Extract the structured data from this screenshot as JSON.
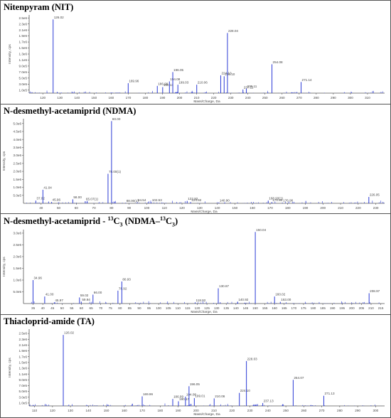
{
  "chart_data": [
    {
      "type": "bar",
      "title": "Nitenpyram (NIT)",
      "xlabel": "Mass/Charge, Da",
      "ylabel": "Intensity, cps",
      "xlim": [
        112,
        320
      ],
      "ylim": [
        0,
        2600000
      ],
      "xticks": [
        120,
        130,
        140,
        150,
        160,
        170,
        180,
        190,
        200,
        210,
        220,
        230,
        240,
        250,
        260,
        270,
        280,
        290,
        300,
        310
      ],
      "yticks": [
        {
          "v": 100000,
          "label": "1.0e5"
        },
        {
          "v": 300000,
          "label": "3.0e5"
        },
        {
          "v": 500000,
          "label": "5.0e5"
        },
        {
          "v": 700000,
          "label": "7.0e5"
        },
        {
          "v": 900000,
          "label": "9.0e5"
        },
        {
          "v": 1100000,
          "label": "1.1e6"
        },
        {
          "v": 1300000,
          "label": "1.3e6"
        },
        {
          "v": 1500000,
          "label": "1.5e6"
        },
        {
          "v": 1700000,
          "label": "1.7e6"
        },
        {
          "v": 1900000,
          "label": "1.9e6"
        },
        {
          "v": 2100000,
          "label": "2.1e6"
        },
        {
          "v": 2300000,
          "label": "2.3e6"
        },
        {
          "v": 2500000,
          "label": "2.5e6"
        }
      ],
      "peaks": [
        {
          "x": 126.02,
          "y": 2450000,
          "label": "126.02"
        },
        {
          "x": 169.96,
          "y": 330000,
          "label": "169.96"
        },
        {
          "x": 186.99,
          "y": 240000,
          "label": "186.99"
        },
        {
          "x": 190.13,
          "y": 200000,
          "label": "190.13"
        },
        {
          "x": 194.08,
          "y": 390000,
          "label": "194.08"
        },
        {
          "x": 196.05,
          "y": 700000,
          "label": "196.05"
        },
        {
          "x": 199.03,
          "y": 280000,
          "label": "199.03"
        },
        {
          "x": 210.06,
          "y": 280000,
          "label": "210.06"
        },
        {
          "x": 224.1,
          "y": 590000,
          "label": "224.10"
        },
        {
          "x": 226.1,
          "y": 560000,
          "label": "226.10"
        },
        {
          "x": 228.04,
          "y": 2000000,
          "label": "228.04"
        },
        {
          "x": 237.11,
          "y": 120000,
          "label": "237.11"
        },
        {
          "x": 239.11,
          "y": 150000,
          "label": "239.11"
        },
        {
          "x": 254.08,
          "y": 960000,
          "label": "254.08"
        },
        {
          "x": 271.14,
          "y": 370000,
          "label": "271.14"
        }
      ]
    },
    {
      "type": "bar",
      "title": "N-desmethyl-acetamiprid (NDMA)",
      "xlabel": "Mass/Charge, Da",
      "ylabel": "Intensity, cps",
      "xlim": [
        30,
        235
      ],
      "ylim": [
        0,
        5300000
      ],
      "xticks": [
        40,
        50,
        60,
        70,
        80,
        90,
        100,
        110,
        120,
        130,
        140,
        150,
        160,
        170,
        180,
        190,
        200,
        210,
        220,
        230
      ],
      "yticks": [
        {
          "v": 500000,
          "label": "5.0e5"
        },
        {
          "v": 1000000,
          "label": "1.0e6"
        },
        {
          "v": 1500000,
          "label": "1.5e6"
        },
        {
          "v": 2000000,
          "label": "2.0e6"
        },
        {
          "v": 2500000,
          "label": "2.5e6"
        },
        {
          "v": 3000000,
          "label": "3.0e6"
        },
        {
          "v": 3500000,
          "label": "3.5e6"
        },
        {
          "v": 4000000,
          "label": "4.0e6"
        },
        {
          "v": 4500000,
          "label": "4.5e6"
        },
        {
          "v": 5000000,
          "label": "5.0e6"
        }
      ],
      "peaks": [
        {
          "x": 37.02,
          "y": 170000,
          "label": "37.02"
        },
        {
          "x": 41.04,
          "y": 850000,
          "label": "41.04"
        },
        {
          "x": 45.96,
          "y": 80000,
          "label": "45.96"
        },
        {
          "x": 58.0,
          "y": 250000,
          "label": "58.00"
        },
        {
          "x": 65.07,
          "y": 130000,
          "label": "65.07(1)"
        },
        {
          "x": 78.0,
          "y": 1850000,
          "label": "78.00(1)"
        },
        {
          "x": 80.0,
          "y": 5150000,
          "label": "80.00"
        },
        {
          "x": 88.0,
          "y": 30000,
          "label": "88.00(1)"
        },
        {
          "x": 94.54,
          "y": 60000,
          "label": "94.54"
        },
        {
          "x": 102.53,
          "y": 60000,
          "label": "102.53"
        },
        {
          "x": 122.92,
          "y": 150000,
          "label": "122.92"
        },
        {
          "x": 124.92,
          "y": 70000,
          "label": "124.92"
        },
        {
          "x": 140.9,
          "y": 50000,
          "label": "140.90"
        },
        {
          "x": 168.93,
          "y": 170000,
          "label": "168.93(1)"
        },
        {
          "x": 170.94,
          "y": 70000,
          "label": "170.94"
        },
        {
          "x": 176.96,
          "y": 40000,
          "label": "176.96"
        },
        {
          "x": 226.05,
          "y": 400000,
          "label": "226.05"
        }
      ]
    },
    {
      "type": "bar",
      "title": "N-desmethyl-acetamiprid - 13C3 (NDMA-13C3)",
      "xlabel": "Mass/Charge, Da",
      "ylabel": "Intensity, cps",
      "xlim": [
        30,
        217
      ],
      "ylim": [
        0,
        3150000
      ],
      "xticks": [
        35,
        40,
        45,
        50,
        55,
        60,
        65,
        70,
        75,
        80,
        85,
        90,
        95,
        100,
        105,
        110,
        115,
        120,
        125,
        130,
        135,
        140,
        145,
        150,
        155,
        160,
        165,
        170,
        175,
        180,
        185,
        190,
        195,
        200,
        205,
        210,
        215
      ],
      "yticks": [
        {
          "v": 500000,
          "label": "5.0e5"
        },
        {
          "v": 1000000,
          "label": "1.0e6"
        },
        {
          "v": 1500000,
          "label": "1.5e6"
        },
        {
          "v": 2000000,
          "label": "2.0e6"
        },
        {
          "v": 2500000,
          "label": "2.5e6"
        },
        {
          "v": 3000000,
          "label": "3.0e6"
        }
      ],
      "peaks": [
        {
          "x": 34.96,
          "y": 1000000,
          "label": "34.96"
        },
        {
          "x": 41.0,
          "y": 300000,
          "label": "41.00"
        },
        {
          "x": 45.97,
          "y": 50000,
          "label": "45.97"
        },
        {
          "x": 59.02,
          "y": 260000,
          "label": "59.02"
        },
        {
          "x": 59.94,
          "y": 80000,
          "label": "59.94"
        },
        {
          "x": 66.0,
          "y": 380000,
          "label": "66.00"
        },
        {
          "x": 78.92,
          "y": 550000,
          "label": "78.92"
        },
        {
          "x": 80.93,
          "y": 940000,
          "label": "80.93"
        },
        {
          "x": 118.92,
          "y": 50000,
          "label": "118.92"
        },
        {
          "x": 130.87,
          "y": 650000,
          "label": "130.87"
        },
        {
          "x": 140.92,
          "y": 80000,
          "label": "140.92"
        },
        {
          "x": 150.04,
          "y": 3050000,
          "label": "150.04"
        },
        {
          "x": 160.02,
          "y": 300000,
          "label": "160.02"
        },
        {
          "x": 163.0,
          "y": 70000,
          "label": "163.00"
        },
        {
          "x": 208.97,
          "y": 440000,
          "label": "208.97"
        }
      ]
    },
    {
      "type": "bar",
      "title": "Thiacloprid-amide (TA)",
      "xlabel": "Mass/Charge, Da",
      "ylabel": "Intensity, cps",
      "xlim": [
        107,
        305
      ],
      "ylim": [
        0,
        2650000
      ],
      "xticks": [
        110,
        120,
        130,
        140,
        150,
        160,
        170,
        180,
        190,
        200,
        210,
        220,
        230,
        240,
        250,
        260,
        270,
        280,
        290,
        300
      ],
      "yticks": [
        {
          "v": 100000,
          "label": "1.0e5"
        },
        {
          "v": 300000,
          "label": "3.0e5"
        },
        {
          "v": 500000,
          "label": "5.0e5"
        },
        {
          "v": 700000,
          "label": "7.0e5"
        },
        {
          "v": 900000,
          "label": "9.0e5"
        },
        {
          "v": 1100000,
          "label": "1.1e6"
        },
        {
          "v": 1300000,
          "label": "1.3e6"
        },
        {
          "v": 1500000,
          "label": "1.5e6"
        },
        {
          "v": 1700000,
          "label": "1.7e6"
        },
        {
          "v": 1900000,
          "label": "1.9e6"
        },
        {
          "v": 2100000,
          "label": "2.1e6"
        },
        {
          "v": 2300000,
          "label": "2.3e6"
        },
        {
          "v": 2500000,
          "label": "2.5e6"
        }
      ],
      "peaks": [
        {
          "x": 126.02,
          "y": 2450000,
          "label": "126.02"
        },
        {
          "x": 169.96,
          "y": 330000,
          "label": "169.96"
        },
        {
          "x": 186.99,
          "y": 240000,
          "label": "186.99"
        },
        {
          "x": 190.17,
          "y": 160000,
          "label": "190.17"
        },
        {
          "x": 194.08,
          "y": 320000,
          "label": "194.08"
        },
        {
          "x": 196.05,
          "y": 680000,
          "label": "196.05"
        },
        {
          "x": 199.01,
          "y": 270000,
          "label": "199.01"
        },
        {
          "x": 210.06,
          "y": 260000,
          "label": "210.06"
        },
        {
          "x": 224.1,
          "y": 450000,
          "label": "224.10"
        },
        {
          "x": 228.03,
          "y": 1550000,
          "label": "228.03"
        },
        {
          "x": 237.13,
          "y": 100000,
          "label": "237.13"
        },
        {
          "x": 254.07,
          "y": 900000,
          "label": "254.07"
        },
        {
          "x": 271.13,
          "y": 350000,
          "label": "271.13"
        }
      ]
    }
  ],
  "colors": {
    "peak": "#2b3bd6",
    "axis": "#555555",
    "text": "#444444"
  }
}
